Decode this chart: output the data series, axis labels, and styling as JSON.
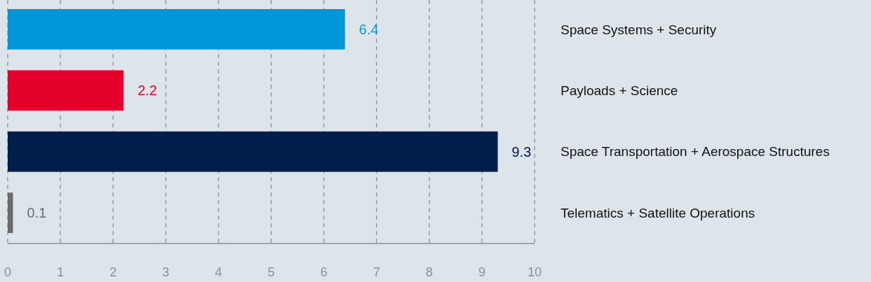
{
  "chart_data": {
    "type": "bar",
    "orientation": "horizontal",
    "categories": [
      "Space Systems + Security",
      "Payloads + Science",
      "Space Transportation + Aerospace Structures",
      "Telematics + Satellite Operations"
    ],
    "values": [
      6.4,
      2.2,
      9.3,
      0.1
    ],
    "colors": [
      "#0097d8",
      "#e4002b",
      "#001e4b",
      "#6b6b6b"
    ],
    "xlim": [
      0,
      10
    ],
    "xticks": [
      0,
      1,
      2,
      3,
      4,
      5,
      6,
      7,
      8,
      9,
      10
    ],
    "grid": "x",
    "data_labels": true
  }
}
